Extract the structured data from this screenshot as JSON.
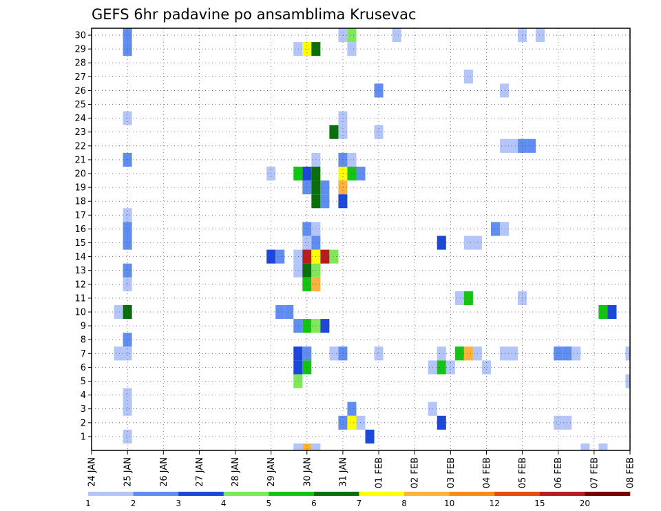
{
  "chart_data": {
    "type": "heatmap",
    "title": "GEFS 6hr padavine po ansamblima Krusevac",
    "x_tick_labels": [
      "24 JAN",
      "25 JAN",
      "26 JAN",
      "27 JAN",
      "28 JAN",
      "29 JAN",
      "30 JAN",
      "31 JAN",
      "01 FEB",
      "02 FEB",
      "03 FEB",
      "04 FEB",
      "05 FEB",
      "06 FEB",
      "07 FEB",
      "08 FEB"
    ],
    "y_tick_labels": [
      "1",
      "2",
      "3",
      "4",
      "5",
      "6",
      "7",
      "8",
      "9",
      "10",
      "11",
      "12",
      "13",
      "14",
      "15",
      "16",
      "17",
      "18",
      "19",
      "20",
      "21",
      "22",
      "23",
      "24",
      "25",
      "26",
      "27",
      "28",
      "29",
      "30"
    ],
    "xlim_days": [
      0,
      15
    ],
    "ylim": [
      0,
      30
    ],
    "grid": true,
    "colorbar": {
      "labels": [
        "1",
        "2",
        "3",
        "4",
        "5",
        "6",
        "7",
        "8",
        "10",
        "12",
        "15",
        "20"
      ],
      "colors": [
        "#b4c5fa",
        "#5f8ef0",
        "#1c48d9",
        "#7ee85a",
        "#14c314",
        "#0a6e0a",
        "#ffff00",
        "#fdb23c",
        "#f58c14",
        "#e64b14",
        "#b41e1e",
        "#780000"
      ]
    },
    "cells": [
      {
        "day": 0.75,
        "member": 10,
        "level": 1
      },
      {
        "day": 1,
        "member": 10,
        "level": 6
      },
      {
        "day": 0.75,
        "member": 7,
        "level": 1
      },
      {
        "day": 1,
        "member": 7,
        "level": 1
      },
      {
        "day": 1,
        "member": 30,
        "level": 2
      },
      {
        "day": 1,
        "member": 29,
        "level": 2
      },
      {
        "day": 1,
        "member": 24,
        "level": 1
      },
      {
        "day": 1,
        "member": 21,
        "level": 2
      },
      {
        "day": 1,
        "member": 17,
        "level": 1
      },
      {
        "day": 1,
        "member": 16,
        "level": 2
      },
      {
        "day": 1,
        "member": 15,
        "level": 2
      },
      {
        "day": 1,
        "member": 13,
        "level": 2
      },
      {
        "day": 1,
        "member": 12,
        "level": 1
      },
      {
        "day": 1,
        "member": 8,
        "level": 2
      },
      {
        "day": 1,
        "member": 4,
        "level": 1
      },
      {
        "day": 1,
        "member": 3,
        "level": 1
      },
      {
        "day": 1,
        "member": 1,
        "level": 1
      },
      {
        "day": 5,
        "member": 20,
        "level": 1
      },
      {
        "day": 5,
        "member": 14,
        "level": 3
      },
      {
        "day": 5.25,
        "member": 14,
        "level": 2
      },
      {
        "day": 5.25,
        "member": 10,
        "level": 2
      },
      {
        "day": 5.5,
        "member": 10,
        "level": 2
      },
      {
        "day": 5.75,
        "member": 29,
        "level": 1
      },
      {
        "day": 6,
        "member": 29,
        "level": 7
      },
      {
        "day": 6.25,
        "member": 29,
        "level": 6
      },
      {
        "day": 7,
        "member": 30,
        "level": 1
      },
      {
        "day": 7.25,
        "member": 30,
        "level": 4
      },
      {
        "day": 7.25,
        "member": 29,
        "level": 1
      },
      {
        "day": 7,
        "member": 23,
        "level": 1
      },
      {
        "day": 6.75,
        "member": 23,
        "level": 6
      },
      {
        "day": 7,
        "member": 24,
        "level": 1
      },
      {
        "day": 6.25,
        "member": 21,
        "level": 1
      },
      {
        "day": 7,
        "member": 21,
        "level": 2
      },
      {
        "day": 7.25,
        "member": 21,
        "level": 1
      },
      {
        "day": 5.75,
        "member": 20,
        "level": 5
      },
      {
        "day": 6,
        "member": 20,
        "level": 3
      },
      {
        "day": 6.25,
        "member": 20,
        "level": 6
      },
      {
        "day": 7,
        "member": 20,
        "level": 7
      },
      {
        "day": 7.25,
        "member": 20,
        "level": 5
      },
      {
        "day": 7.5,
        "member": 20,
        "level": 2
      },
      {
        "day": 6,
        "member": 19,
        "level": 2
      },
      {
        "day": 6.25,
        "member": 19,
        "level": 6
      },
      {
        "day": 7,
        "member": 19,
        "level": 8
      },
      {
        "day": 6.5,
        "member": 19,
        "level": 2
      },
      {
        "day": 6.25,
        "member": 18,
        "level": 6
      },
      {
        "day": 6.5,
        "member": 18,
        "level": 2
      },
      {
        "day": 7,
        "member": 18,
        "level": 3
      },
      {
        "day": 6,
        "member": 16,
        "level": 2
      },
      {
        "day": 6.25,
        "member": 16,
        "level": 1
      },
      {
        "day": 6,
        "member": 15,
        "level": 1
      },
      {
        "day": 6.25,
        "member": 15,
        "level": 2
      },
      {
        "day": 5.75,
        "member": 14,
        "level": 1
      },
      {
        "day": 6,
        "member": 14,
        "level": 11
      },
      {
        "day": 6.25,
        "member": 14,
        "level": 7
      },
      {
        "day": 6.5,
        "member": 14,
        "level": 11
      },
      {
        "day": 6.75,
        "member": 14,
        "level": 4
      },
      {
        "day": 5.75,
        "member": 13,
        "level": 1
      },
      {
        "day": 6,
        "member": 13,
        "level": 6
      },
      {
        "day": 6.25,
        "member": 13,
        "level": 4
      },
      {
        "day": 6,
        "member": 12,
        "level": 5
      },
      {
        "day": 6.25,
        "member": 12,
        "level": 8
      },
      {
        "day": 5.75,
        "member": 9,
        "level": 2
      },
      {
        "day": 6,
        "member": 9,
        "level": 5
      },
      {
        "day": 6.25,
        "member": 9,
        "level": 4
      },
      {
        "day": 6.5,
        "member": 9,
        "level": 3
      },
      {
        "day": 5.75,
        "member": 7,
        "level": 3
      },
      {
        "day": 6,
        "member": 7,
        "level": 2
      },
      {
        "day": 6.75,
        "member": 7,
        "level": 1
      },
      {
        "day": 7,
        "member": 7,
        "level": 2
      },
      {
        "day": 5.75,
        "member": 6,
        "level": 3
      },
      {
        "day": 6,
        "member": 6,
        "level": 5
      },
      {
        "day": 5.75,
        "member": 5,
        "level": 4
      },
      {
        "day": 7.25,
        "member": 3,
        "level": 2
      },
      {
        "day": 7,
        "member": 2,
        "level": 2
      },
      {
        "day": 7.25,
        "member": 2,
        "level": 7
      },
      {
        "day": 7.5,
        "member": 2,
        "level": 1
      },
      {
        "day": 5.75,
        "member": 0,
        "level": 1
      },
      {
        "day": 6,
        "member": 0,
        "level": 8
      },
      {
        "day": 6.25,
        "member": 0,
        "level": 1
      },
      {
        "day": 7.75,
        "member": 1,
        "level": 3
      },
      {
        "day": 8,
        "member": 26,
        "level": 2
      },
      {
        "day": 8,
        "member": 23,
        "level": 1
      },
      {
        "day": 8,
        "member": 7,
        "level": 1
      },
      {
        "day": 8.5,
        "member": 30,
        "level": 1
      },
      {
        "day": 9.5,
        "member": 6,
        "level": 1
      },
      {
        "day": 9.75,
        "member": 6,
        "level": 5
      },
      {
        "day": 10,
        "member": 6,
        "level": 1
      },
      {
        "day": 9.75,
        "member": 15,
        "level": 3
      },
      {
        "day": 9.5,
        "member": 3,
        "level": 1
      },
      {
        "day": 9.75,
        "member": 2,
        "level": 3
      },
      {
        "day": 9.75,
        "member": 7,
        "level": 1
      },
      {
        "day": 10.25,
        "member": 7,
        "level": 5
      },
      {
        "day": 10.5,
        "member": 7,
        "level": 8
      },
      {
        "day": 10.75,
        "member": 7,
        "level": 1
      },
      {
        "day": 10.25,
        "member": 11,
        "level": 1
      },
      {
        "day": 10.5,
        "member": 11,
        "level": 5
      },
      {
        "day": 10.5,
        "member": 27,
        "level": 1
      },
      {
        "day": 10.5,
        "member": 15,
        "level": 1
      },
      {
        "day": 10.75,
        "member": 15,
        "level": 1
      },
      {
        "day": 11,
        "member": 6,
        "level": 1
      },
      {
        "day": 11.25,
        "member": 16,
        "level": 2
      },
      {
        "day": 11.5,
        "member": 16,
        "level": 1
      },
      {
        "day": 11.5,
        "member": 26,
        "level": 1
      },
      {
        "day": 11.5,
        "member": 22,
        "level": 1
      },
      {
        "day": 11.75,
        "member": 22,
        "level": 1
      },
      {
        "day": 12,
        "member": 22,
        "level": 2
      },
      {
        "day": 12.25,
        "member": 22,
        "level": 2
      },
      {
        "day": 11.5,
        "member": 7,
        "level": 1
      },
      {
        "day": 11.75,
        "member": 7,
        "level": 1
      },
      {
        "day": 12,
        "member": 11,
        "level": 1
      },
      {
        "day": 12,
        "member": 30,
        "level": 1
      },
      {
        "day": 12.5,
        "member": 30,
        "level": 1
      },
      {
        "day": 13,
        "member": 7,
        "level": 2
      },
      {
        "day": 13.25,
        "member": 7,
        "level": 2
      },
      {
        "day": 13.5,
        "member": 7,
        "level": 1
      },
      {
        "day": 13,
        "member": 2,
        "level": 1
      },
      {
        "day": 13.25,
        "member": 2,
        "level": 1
      },
      {
        "day": 13.75,
        "member": 0,
        "level": 1
      },
      {
        "day": 14.25,
        "member": 0,
        "level": 1
      },
      {
        "day": 14.25,
        "member": 10,
        "level": 5
      },
      {
        "day": 14.5,
        "member": 10,
        "level": 3
      },
      {
        "day": 15,
        "member": 7,
        "level": 1
      },
      {
        "day": 15,
        "member": 5,
        "level": 1
      }
    ]
  }
}
